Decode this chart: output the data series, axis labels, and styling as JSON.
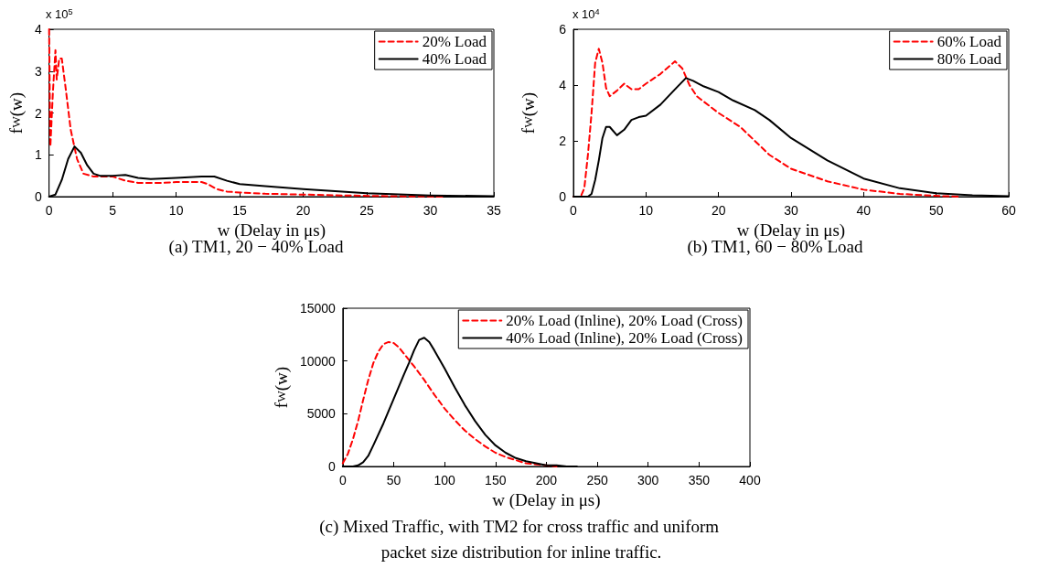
{
  "chart_data": [
    {
      "type": "line",
      "title": "(a) TM1, 20 − 40% Load",
      "xlabel": "w (Delay in μs)",
      "ylabel": "f$_{W}$(w)",
      "annotations": [
        "x 10$^{5}$"
      ],
      "xlim": [
        0,
        35
      ],
      "xticks": [
        0,
        5,
        10,
        15,
        20,
        25,
        30,
        35
      ],
      "ylim": [
        0,
        4
      ],
      "yticks": [
        0,
        1,
        2,
        3,
        4
      ],
      "grid": false,
      "legend": "top right",
      "marker": "none",
      "series": [
        {
          "name": "20% Load",
          "color": "#ff0000",
          "line_style": "dashed",
          "x": [
            0,
            0.1,
            0.3,
            0.5,
            0.6,
            0.8,
            1.0,
            1.3,
            1.7,
            2.2,
            2.7,
            3.5,
            5,
            6,
            7,
            9,
            10,
            12,
            12.5,
            13.2,
            14,
            15,
            17,
            20,
            23,
            27,
            31
          ],
          "values": [
            4.0,
            1.2,
            2.5,
            3.5,
            2.8,
            3.3,
            3.3,
            2.6,
            1.6,
            0.9,
            0.55,
            0.48,
            0.48,
            0.38,
            0.33,
            0.33,
            0.35,
            0.35,
            0.3,
            0.18,
            0.12,
            0.1,
            0.07,
            0.05,
            0.03,
            0.01,
            0
          ]
        },
        {
          "name": "40% Load",
          "color": "#000000",
          "line_style": "solid",
          "x": [
            0,
            0.5,
            1,
            1.5,
            2,
            2.5,
            3,
            3.5,
            4,
            5,
            6,
            7,
            8,
            10,
            12,
            13,
            14,
            15,
            17,
            20,
            25,
            30,
            35
          ],
          "values": [
            0,
            0.05,
            0.4,
            0.9,
            1.2,
            1.05,
            0.75,
            0.55,
            0.5,
            0.5,
            0.52,
            0.45,
            0.42,
            0.45,
            0.48,
            0.48,
            0.38,
            0.3,
            0.25,
            0.18,
            0.08,
            0.03,
            0.01
          ]
        }
      ]
    },
    {
      "type": "line",
      "title": "(b) TM1, 60 − 80% Load",
      "xlabel": "w (Delay in μs)",
      "ylabel": "f$_{W}$(w)",
      "annotations": [
        "x 10$^{4}$"
      ],
      "xlim": [
        0,
        60
      ],
      "xticks": [
        0,
        10,
        20,
        30,
        40,
        50,
        60
      ],
      "ylim": [
        0,
        6
      ],
      "yticks": [
        0,
        2,
        4,
        6
      ],
      "grid": false,
      "legend": "top right",
      "marker": "none",
      "series": [
        {
          "name": "60% Load",
          "color": "#ff0000",
          "line_style": "dashed",
          "x": [
            0,
            1,
            1.5,
            2,
            2.5,
            3,
            3.5,
            4,
            4.5,
            5,
            6,
            7,
            8,
            9,
            10,
            12,
            14,
            15,
            16,
            17,
            20,
            23,
            25,
            27,
            30,
            35,
            40,
            45,
            50,
            53
          ],
          "values": [
            0,
            0,
            0.3,
            1.5,
            3.0,
            4.8,
            5.3,
            4.8,
            3.9,
            3.6,
            3.8,
            4.05,
            3.85,
            3.85,
            4.05,
            4.4,
            4.85,
            4.6,
            4.0,
            3.6,
            3.0,
            2.5,
            2.0,
            1.5,
            1.0,
            0.55,
            0.25,
            0.1,
            0.03,
            0
          ]
        },
        {
          "name": "80% Load",
          "color": "#000000",
          "line_style": "solid",
          "x": [
            0,
            2,
            2.5,
            3,
            3.5,
            4,
            4.5,
            5,
            6,
            7,
            8,
            9,
            10,
            12,
            14,
            15.5,
            16.5,
            18,
            20,
            22,
            25,
            27,
            30,
            35,
            40,
            45,
            50,
            55,
            60
          ],
          "values": [
            0,
            0,
            0.1,
            0.6,
            1.3,
            2.1,
            2.5,
            2.5,
            2.2,
            2.4,
            2.75,
            2.85,
            2.9,
            3.3,
            3.85,
            4.25,
            4.15,
            3.95,
            3.75,
            3.45,
            3.1,
            2.75,
            2.1,
            1.3,
            0.65,
            0.3,
            0.12,
            0.05,
            0.02
          ]
        }
      ]
    },
    {
      "type": "line",
      "title": "(c) Mixed Traffic, with TM2 for cross traffic and uniform packet size distribution for inline traffic.",
      "xlabel": "w (Delay in μs)",
      "ylabel": "f$_{W}$(w)",
      "xlim": [
        0,
        400
      ],
      "xticks": [
        0,
        50,
        100,
        150,
        200,
        250,
        300,
        350,
        400
      ],
      "ylim": [
        0,
        15000
      ],
      "yticks": [
        0,
        5000,
        10000,
        15000
      ],
      "grid": false,
      "legend": "top right",
      "marker": "none",
      "series": [
        {
          "name": "20% Load (Inline), 20% Load (Cross)",
          "color": "#ff0000",
          "line_style": "dashed",
          "x": [
            0,
            5,
            10,
            15,
            20,
            25,
            30,
            35,
            40,
            45,
            50,
            55,
            60,
            70,
            80,
            90,
            100,
            110,
            120,
            130,
            140,
            150,
            160,
            170,
            180,
            190,
            200,
            210
          ],
          "values": [
            300,
            1200,
            2600,
            4300,
            6300,
            8200,
            9800,
            10900,
            11600,
            11800,
            11700,
            11300,
            10700,
            9500,
            8200,
            6800,
            5500,
            4400,
            3400,
            2600,
            1900,
            1300,
            900,
            600,
            300,
            200,
            100,
            0
          ]
        },
        {
          "name": "40% Load (Inline), 20% Load (Cross)",
          "color": "#000000",
          "line_style": "solid",
          "x": [
            0,
            10,
            15,
            20,
            25,
            30,
            40,
            50,
            60,
            65,
            70,
            75,
            80,
            85,
            90,
            100,
            110,
            120,
            130,
            140,
            150,
            160,
            170,
            180,
            190,
            200,
            210,
            220,
            230
          ],
          "values": [
            0,
            0,
            100,
            400,
            1000,
            2000,
            4100,
            6400,
            8700,
            9800,
            11000,
            12000,
            12200,
            11800,
            11000,
            9300,
            7500,
            5800,
            4300,
            3000,
            2000,
            1300,
            800,
            500,
            300,
            100,
            100,
            0,
            0
          ]
        }
      ]
    }
  ]
}
